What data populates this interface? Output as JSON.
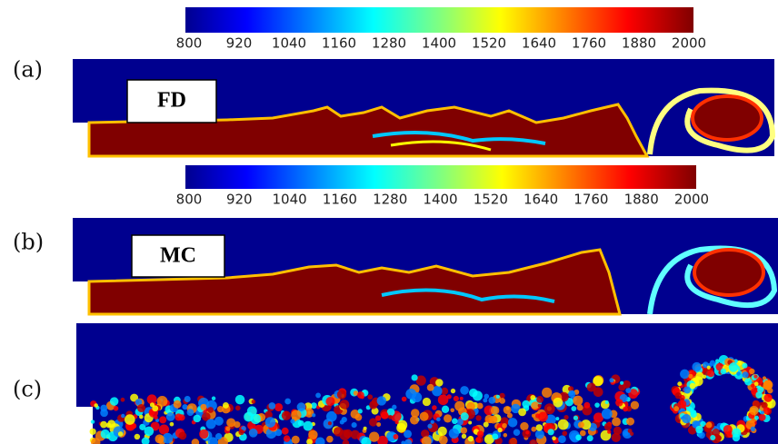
{
  "colorbars": [
    {
      "ticks": [
        800,
        920,
        1040,
        1160,
        1280,
        1400,
        1520,
        1640,
        1760,
        1880,
        2000
      ]
    },
    {
      "ticks": [
        800,
        920,
        1040,
        1160,
        1280,
        1400,
        1520,
        1640,
        1760,
        1880,
        2000
      ]
    }
  ],
  "panels": [
    {
      "label": "(a)",
      "tag": "FD"
    },
    {
      "label": "(b)",
      "tag": "MC"
    },
    {
      "label": "(c)"
    }
  ]
}
